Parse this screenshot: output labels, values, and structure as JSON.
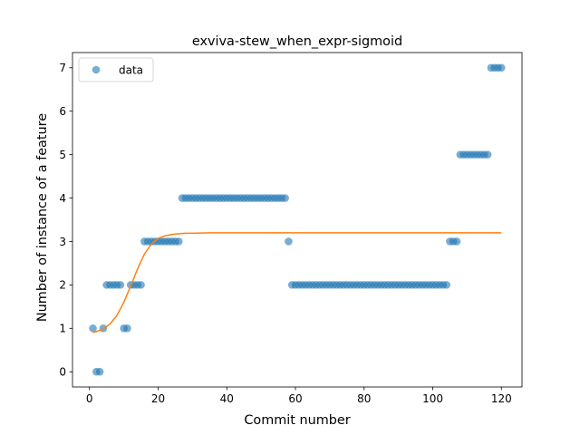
{
  "chart_data": {
    "type": "scatter",
    "title": "exviva-stew_when_expr-sigmoid",
    "xlabel": "Commit number",
    "ylabel": "Number of instance of a feature",
    "xlim": [
      -4.95,
      126.0
    ],
    "ylim": [
      -0.35,
      7.35
    ],
    "xticks": [
      0,
      20,
      40,
      60,
      80,
      100,
      120
    ],
    "yticks": [
      0,
      1,
      2,
      3,
      4,
      5,
      6,
      7
    ],
    "grid": false,
    "legend": {
      "position": "upper-left",
      "entries": [
        "data"
      ]
    },
    "series": [
      {
        "name": "data",
        "kind": "scatter",
        "color": "#1f77b4",
        "x": [
          1,
          2,
          3,
          4,
          5,
          6,
          7,
          8,
          9,
          10,
          11,
          12,
          13,
          14,
          15,
          16,
          17,
          18,
          19,
          20,
          21,
          22,
          23,
          24,
          25,
          26,
          27,
          28,
          29,
          30,
          31,
          32,
          33,
          34,
          35,
          36,
          37,
          38,
          39,
          40,
          41,
          42,
          43,
          44,
          45,
          46,
          47,
          48,
          49,
          50,
          51,
          52,
          53,
          54,
          55,
          56,
          57,
          58,
          59,
          60,
          61,
          62,
          63,
          64,
          65,
          66,
          67,
          68,
          69,
          70,
          71,
          72,
          73,
          74,
          75,
          76,
          77,
          78,
          79,
          80,
          81,
          82,
          83,
          84,
          85,
          86,
          87,
          88,
          89,
          90,
          91,
          92,
          93,
          94,
          95,
          96,
          97,
          98,
          99,
          100,
          101,
          102,
          103,
          104,
          105,
          106,
          107,
          108,
          109,
          110,
          111,
          112,
          113,
          114,
          115,
          116,
          117,
          118,
          119,
          120
        ],
        "y": [
          1,
          0,
          0,
          1,
          2,
          2,
          2,
          2,
          2,
          1,
          1,
          2,
          2,
          2,
          2,
          3,
          3,
          3,
          3,
          3,
          3,
          3,
          3,
          3,
          3,
          3,
          4,
          4,
          4,
          4,
          4,
          4,
          4,
          4,
          4,
          4,
          4,
          4,
          4,
          4,
          4,
          4,
          4,
          4,
          4,
          4,
          4,
          4,
          4,
          4,
          4,
          4,
          4,
          4,
          4,
          4,
          4,
          3,
          2,
          2,
          2,
          2,
          2,
          2,
          2,
          2,
          2,
          2,
          2,
          2,
          2,
          2,
          2,
          2,
          2,
          2,
          2,
          2,
          2,
          2,
          2,
          2,
          2,
          2,
          2,
          2,
          2,
          2,
          2,
          2,
          2,
          2,
          2,
          2,
          2,
          2,
          2,
          2,
          2,
          2,
          2,
          2,
          2,
          2,
          3,
          3,
          3,
          5,
          5,
          5,
          5,
          5,
          5,
          5,
          5,
          5,
          7,
          7,
          7,
          7
        ]
      },
      {
        "name": "",
        "kind": "line",
        "color": "#ff7f0e",
        "model": "sigmoid",
        "x": [
          1,
          4,
          6,
          8,
          10,
          12,
          14,
          16,
          18,
          20,
          22,
          24,
          26,
          28,
          30,
          35,
          40,
          60,
          80,
          100,
          120
        ],
        "y": [
          0.9,
          0.98,
          1.1,
          1.3,
          1.6,
          1.97,
          2.37,
          2.71,
          2.94,
          3.07,
          3.13,
          3.16,
          3.18,
          3.19,
          3.19,
          3.2,
          3.2,
          3.2,
          3.2,
          3.2,
          3.2
        ]
      }
    ]
  }
}
